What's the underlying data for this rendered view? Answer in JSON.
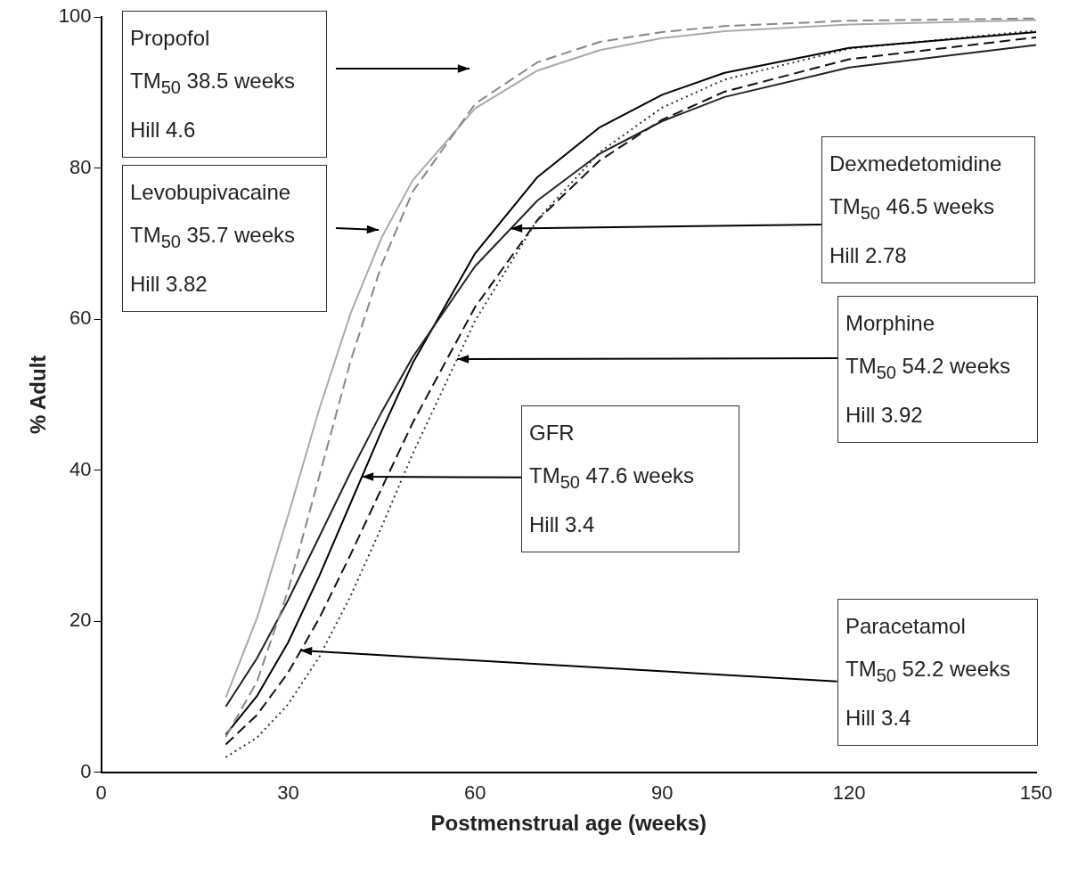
{
  "chart_data": {
    "type": "line",
    "xlabel": "Postmenstrual age (weeks)",
    "ylabel": "% Adult",
    "xlim": [
      0,
      150
    ],
    "xticks": [
      0,
      30,
      60,
      90,
      120,
      150
    ],
    "ylim": [
      0,
      100
    ],
    "yticks": [
      0,
      20,
      40,
      60,
      80,
      100
    ],
    "grid": false,
    "legend": false,
    "marker": "none",
    "x": [
      20,
      25,
      30,
      35,
      40,
      45,
      50,
      60,
      70,
      80,
      90,
      100,
      120,
      150
    ],
    "series": [
      {
        "color": "#888888",
        "line_style": "dashed",
        "values": [
          4.7,
          12.0,
          24.1,
          39.2,
          54.4,
          67.2,
          76.9,
          88.5,
          94.0,
          96.7,
          98.0,
          98.8,
          99.5,
          99.8
        ]
      },
      {
        "color": "#aaaaaa",
        "line_style": "solid",
        "values": [
          9.9,
          20.4,
          34.0,
          48.1,
          60.7,
          70.8,
          78.4,
          87.9,
          92.9,
          95.6,
          97.2,
          98.1,
          99.0,
          99.6
        ]
      },
      {
        "color": "#222222",
        "line_style": "solid",
        "values": [
          8.7,
          15.1,
          22.8,
          31.2,
          39.7,
          47.7,
          55.0,
          67.0,
          75.7,
          81.9,
          86.2,
          89.4,
          93.3,
          96.3
        ]
      },
      {
        "color": "#000000",
        "line_style": "solid",
        "values": [
          5.0,
          10.1,
          17.2,
          26.0,
          35.6,
          45.2,
          54.2,
          68.7,
          78.8,
          85.4,
          89.7,
          92.6,
          95.9,
          98.0
        ]
      },
      {
        "color": "#333333",
        "line_style": "dotted",
        "values": [
          2.0,
          4.6,
          9.0,
          15.3,
          23.3,
          32.5,
          42.2,
          59.8,
          73.2,
          82.1,
          88.0,
          91.7,
          95.8,
          98.2
        ]
      },
      {
        "color": "#111111",
        "line_style": "dashed",
        "values": [
          3.7,
          7.6,
          13.2,
          20.4,
          28.8,
          37.6,
          46.3,
          61.6,
          73.1,
          81.0,
          86.4,
          90.1,
          94.4,
          97.3
        ]
      }
    ],
    "annotations": [
      "Propofol\nTM$_{50}$ 38.5 weeks\nHill 4.6",
      "Levobupivacaine\nTM$_{50}$ 35.7 weeks\nHill 3.82",
      {
        "text": "Dexmedetomidine\nTM$_{50}$ 46.5 weeks\nHill 2.78",
        "x": 65.7,
        "y": 72.0
      },
      {
        "text": "Morphine\nTM$_{50}$ 54.2 weeks\nHill 3.92",
        "x": 57.1,
        "y": 54.7
      },
      {
        "text": "GFR\nTM$_{50}$ 47.6 weeks\nHill 3.4",
        "x": 41.8,
        "y": 39.1
      },
      {
        "text": "Paracetamol\nTM$_{50}$ 52.2 weeks\nHill 3.4",
        "x": 32,
        "y": 16.1
      }
    ]
  }
}
